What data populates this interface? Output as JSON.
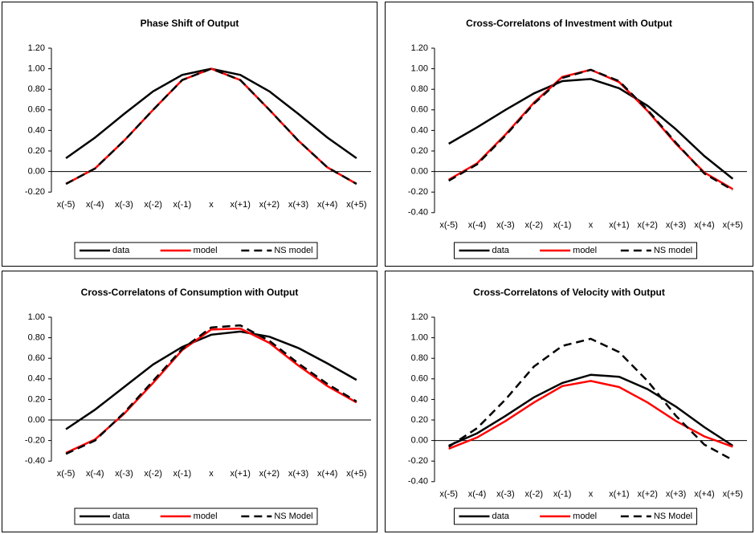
{
  "chart_data": [
    {
      "type": "line",
      "title": "Phase Shift of Output",
      "categories": [
        "x(-5)",
        "x(-4)",
        "x(-3)",
        "x(-2)",
        "x(-1)",
        "x",
        "x(+1)",
        "x(+2)",
        "x(+3)",
        "x(+4)",
        "x(+5)"
      ],
      "series": [
        {
          "name": "data",
          "color": "#000000",
          "dashed": false,
          "values": [
            0.13,
            0.33,
            0.56,
            0.78,
            0.94,
            1.0,
            0.94,
            0.78,
            0.56,
            0.33,
            0.13
          ]
        },
        {
          "name": "model",
          "color": "#ff0000",
          "dashed": false,
          "values": [
            -0.12,
            0.03,
            0.3,
            0.6,
            0.89,
            1.0,
            0.89,
            0.6,
            0.3,
            0.04,
            -0.12
          ]
        },
        {
          "name": "NS model",
          "color": "#000000",
          "dashed": true,
          "values": [
            -0.12,
            0.03,
            0.3,
            0.6,
            0.89,
            1.0,
            0.89,
            0.6,
            0.3,
            0.04,
            -0.12
          ]
        }
      ],
      "ylim": [
        -0.2,
        1.2
      ],
      "yticks": [
        {
          "value": -0.2,
          "label": "-0.20"
        },
        {
          "value": 0,
          "label": "0.00"
        },
        {
          "value": 0.2,
          "label": "0.20"
        },
        {
          "value": 0.4,
          "label": "0.40"
        },
        {
          "value": 0.6,
          "label": "0.60"
        },
        {
          "value": 0.8,
          "label": "0.80"
        },
        {
          "value": 1.0,
          "label": "1.00"
        },
        {
          "value": 1.2,
          "label": "1.20"
        }
      ]
    },
    {
      "type": "line",
      "title": "Cross-Correlatons of Investment with Output",
      "categories": [
        "x(-5)",
        "x(-4)",
        "x(-3)",
        "x(-2)",
        "x(-1)",
        "x",
        "x(+1)",
        "x(+2)",
        "x(+3)",
        "x(+4)",
        "x(+5)"
      ],
      "series": [
        {
          "name": "data",
          "color": "#000000",
          "dashed": false,
          "values": [
            0.27,
            0.43,
            0.6,
            0.76,
            0.88,
            0.9,
            0.81,
            0.64,
            0.41,
            0.15,
            -0.07
          ]
        },
        {
          "name": "model",
          "color": "#ff0000",
          "dashed": false,
          "values": [
            -0.08,
            0.08,
            0.36,
            0.67,
            0.92,
            0.99,
            0.87,
            0.59,
            0.27,
            -0.01,
            -0.17
          ]
        },
        {
          "name": "NS model",
          "color": "#000000",
          "dashed": true,
          "values": [
            -0.09,
            0.07,
            0.35,
            0.66,
            0.91,
            0.99,
            0.88,
            0.6,
            0.28,
            -0.02,
            -0.18
          ]
        }
      ],
      "ylim": [
        -0.4,
        1.2
      ],
      "yticks": [
        {
          "value": -0.4,
          "label": "-0.40"
        },
        {
          "value": -0.2,
          "label": "-0.20"
        },
        {
          "value": 0,
          "label": "0.00"
        },
        {
          "value": 0.2,
          "label": "0.20"
        },
        {
          "value": 0.4,
          "label": "0.40"
        },
        {
          "value": 0.6,
          "label": "0.60"
        },
        {
          "value": 0.8,
          "label": "0.80"
        },
        {
          "value": 1.0,
          "label": "1.00"
        },
        {
          "value": 1.2,
          "label": "1.20"
        }
      ]
    },
    {
      "type": "line",
      "title": "Cross-Correlatons of Consumption with Output",
      "categories": [
        "x(-5)",
        "x(-4)",
        "x(-3)",
        "x(-2)",
        "x(-1)",
        "x",
        "x(+1)",
        "x(+2)",
        "x(+3)",
        "x(+4)",
        "x(+5)"
      ],
      "series": [
        {
          "name": "data",
          "color": "#000000",
          "dashed": false,
          "values": [
            -0.09,
            0.1,
            0.32,
            0.54,
            0.71,
            0.83,
            0.86,
            0.81,
            0.7,
            0.55,
            0.39
          ]
        },
        {
          "name": "model",
          "color": "#ff0000",
          "dashed": false,
          "values": [
            -0.32,
            -0.19,
            0.06,
            0.36,
            0.68,
            0.88,
            0.89,
            0.75,
            0.53,
            0.33,
            0.17
          ]
        },
        {
          "name": "NS Model",
          "color": "#000000",
          "dashed": true,
          "values": [
            -0.33,
            -0.2,
            0.07,
            0.38,
            0.69,
            0.9,
            0.92,
            0.77,
            0.55,
            0.35,
            0.18
          ]
        }
      ],
      "ylim": [
        -0.4,
        1.0
      ],
      "yticks": [
        {
          "value": -0.4,
          "label": "-0.40"
        },
        {
          "value": -0.2,
          "label": "-0.20"
        },
        {
          "value": 0,
          "label": "0.00"
        },
        {
          "value": 0.2,
          "label": "0.20"
        },
        {
          "value": 0.4,
          "label": "0.40"
        },
        {
          "value": 0.6,
          "label": "0.60"
        },
        {
          "value": 0.8,
          "label": "0.80"
        },
        {
          "value": 1.0,
          "label": "1.00"
        }
      ]
    },
    {
      "type": "line",
      "title": "Cross-Correlatons of Velocity with Output",
      "categories": [
        "x(-5)",
        "x(-4)",
        "x(-3)",
        "x(-2)",
        "x(-1)",
        "x",
        "x(+1)",
        "x(+2)",
        "x(+3)",
        "x(+4)",
        "x(+5)"
      ],
      "series": [
        {
          "name": "data",
          "color": "#000000",
          "dashed": false,
          "values": [
            -0.05,
            0.07,
            0.24,
            0.42,
            0.56,
            0.64,
            0.62,
            0.5,
            0.33,
            0.13,
            -0.05
          ]
        },
        {
          "name": "model",
          "color": "#ff0000",
          "dashed": false,
          "values": [
            -0.08,
            0.03,
            0.19,
            0.37,
            0.53,
            0.58,
            0.52,
            0.37,
            0.19,
            0.04,
            -0.06
          ]
        },
        {
          "name": "NS Model",
          "color": "#000000",
          "dashed": true,
          "values": [
            -0.06,
            0.12,
            0.4,
            0.72,
            0.92,
            0.99,
            0.86,
            0.58,
            0.24,
            -0.04,
            -0.19
          ]
        }
      ],
      "ylim": [
        -0.4,
        1.2
      ],
      "yticks": [
        {
          "value": -0.4,
          "label": "-0.40"
        },
        {
          "value": -0.2,
          "label": "-0.20"
        },
        {
          "value": 0,
          "label": "0.00"
        },
        {
          "value": 0.2,
          "label": "0.20"
        },
        {
          "value": 0.4,
          "label": "0.40"
        },
        {
          "value": 0.6,
          "label": "0.60"
        },
        {
          "value": 0.8,
          "label": "0.80"
        },
        {
          "value": 1.0,
          "label": "1.00"
        },
        {
          "value": 1.2,
          "label": "1.20"
        }
      ]
    }
  ]
}
